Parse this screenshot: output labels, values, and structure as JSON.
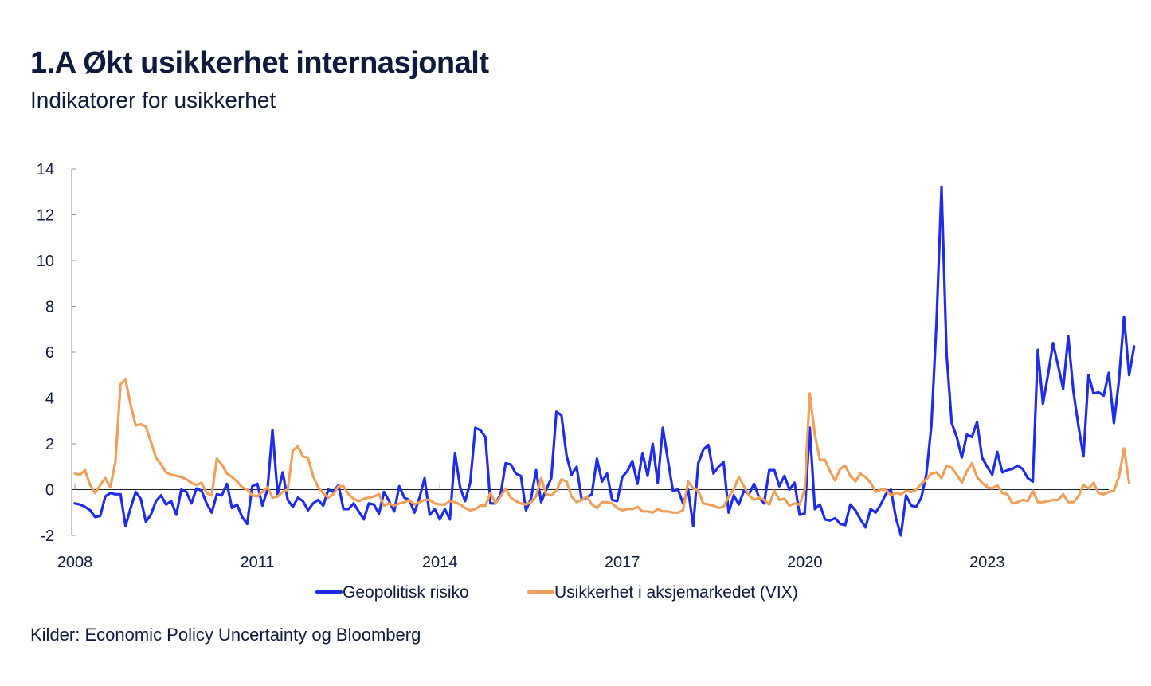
{
  "header": {
    "title": "1.A Økt usikkerhet internasjonalt",
    "subtitle": "Indikatorer for usikkerhet"
  },
  "footer": {
    "source": "Kilder: Economic Policy Uncertainty og Bloomberg"
  },
  "chart_data": {
    "type": "line",
    "title": "1.A Økt usikkerhet internasjonalt",
    "subtitle": "Indikatorer for usikkerhet",
    "xlabel": "",
    "ylabel": "",
    "xlim": [
      2008.0,
      2025.0
    ],
    "ylim": [
      -2,
      14
    ],
    "yticks": [
      -2,
      0,
      2,
      4,
      6,
      8,
      10,
      12,
      14
    ],
    "xticks": [
      2008,
      2011,
      2014,
      2017,
      2020,
      2023
    ],
    "xtick_labels": [
      "2008",
      "2011",
      "2014",
      "2017",
      "2020",
      "2023"
    ],
    "grid": false,
    "zero_line": true,
    "legend": "bottom",
    "series": [
      {
        "name": "Geopolitisk risiko",
        "color": "#1f2ee6",
        "start": 2008.0,
        "step_months": 1,
        "values": [
          -0.6,
          -0.65,
          -0.75,
          -0.9,
          -1.2,
          -1.15,
          -0.3,
          -0.15,
          -0.2,
          -0.2,
          -1.6,
          -0.8,
          -0.1,
          -0.4,
          -1.4,
          -1.1,
          -0.5,
          -0.25,
          -0.65,
          -0.5,
          -1.1,
          0.0,
          -0.1,
          -0.6,
          0.05,
          -0.05,
          -0.6,
          -1.0,
          -0.2,
          -0.25,
          0.25,
          -0.8,
          -0.65,
          -1.2,
          -1.5,
          0.15,
          0.25,
          -0.7,
          0.0,
          2.6,
          -0.2,
          0.75,
          -0.45,
          -0.75,
          -0.35,
          -0.5,
          -0.9,
          -0.6,
          -0.45,
          -0.7,
          0.0,
          -0.1,
          0.2,
          -0.85,
          -0.85,
          -0.6,
          -0.95,
          -1.3,
          -0.6,
          -0.65,
          -1.05,
          -0.1,
          -0.5,
          -0.95,
          0.15,
          -0.35,
          -0.45,
          -1.0,
          -0.35,
          0.5,
          -1.1,
          -0.85,
          -1.3,
          -0.85,
          -1.3,
          1.6,
          0.1,
          -0.5,
          0.3,
          2.7,
          2.6,
          2.3,
          -0.6,
          -0.6,
          -0.2,
          1.15,
          1.1,
          0.7,
          0.6,
          -0.9,
          -0.4,
          0.85,
          -0.55,
          0.0,
          0.5,
          3.4,
          3.25,
          1.5,
          0.65,
          1.0,
          -0.45,
          -0.35,
          -0.2,
          1.35,
          0.35,
          0.7,
          -0.45,
          -0.5,
          0.55,
          0.8,
          1.25,
          0.25,
          1.6,
          0.6,
          2.0,
          0.3,
          2.7,
          1.3,
          -0.05,
          0.0,
          -0.6,
          0.0,
          -1.6,
          1.15,
          1.75,
          1.95,
          0.7,
          1.0,
          1.2,
          -1.0,
          -0.25,
          -0.65,
          -0.05,
          -0.2,
          0.25,
          -0.35,
          -0.6,
          0.85,
          0.85,
          0.15,
          0.6,
          0.0,
          0.3,
          -1.1,
          -1.05,
          2.7,
          -0.85,
          -0.65,
          -1.3,
          -1.35,
          -1.25,
          -1.5,
          -1.55,
          -0.65,
          -0.9,
          -1.3,
          -1.65,
          -0.85,
          -1.0,
          -0.65,
          -0.2,
          0.0,
          -1.25,
          -2.0,
          -0.25,
          -0.7,
          -0.75,
          -0.35,
          0.65,
          2.8,
          7.3,
          13.2,
          5.9,
          2.9,
          2.3,
          1.4,
          2.4,
          2.3,
          2.95,
          1.4,
          1.0,
          0.65,
          1.65,
          0.75,
          0.85,
          0.9,
          1.05,
          0.9,
          0.5,
          0.35,
          6.1,
          3.75,
          5.0,
          6.4,
          5.4,
          4.4,
          6.7,
          4.3,
          2.8,
          1.45,
          5.0,
          4.2,
          4.25,
          4.1,
          5.1,
          2.9,
          4.75,
          7.55,
          5.0,
          6.25
        ]
      },
      {
        "name": "Usikkerhet i aksjemarkedet (VIX)",
        "color": "#f0a05a",
        "start": 2008.0,
        "step_months": 1,
        "values": [
          0.7,
          0.65,
          0.85,
          0.2,
          -0.15,
          0.2,
          0.5,
          0.1,
          1.2,
          4.6,
          4.8,
          3.7,
          2.8,
          2.85,
          2.75,
          2.1,
          1.4,
          1.1,
          0.75,
          0.65,
          0.6,
          0.55,
          0.45,
          0.3,
          0.2,
          0.3,
          -0.15,
          -0.25,
          1.35,
          1.1,
          0.7,
          0.55,
          0.35,
          0.1,
          0.0,
          -0.25,
          -0.3,
          -0.1,
          0.1,
          -0.35,
          -0.3,
          -0.1,
          0.0,
          1.7,
          1.9,
          1.45,
          1.4,
          0.6,
          0.1,
          -0.15,
          -0.35,
          -0.2,
          0.15,
          0.15,
          -0.2,
          -0.4,
          -0.5,
          -0.4,
          -0.35,
          -0.3,
          -0.2,
          -0.7,
          -0.6,
          -0.7,
          -0.6,
          -0.55,
          -0.45,
          -0.65,
          -0.55,
          -0.45,
          -0.45,
          -0.6,
          -0.65,
          -0.65,
          -0.5,
          -0.55,
          -0.65,
          -0.8,
          -0.9,
          -0.85,
          -0.7,
          -0.7,
          -0.15,
          -0.6,
          -0.3,
          0.05,
          -0.35,
          -0.5,
          -0.6,
          -0.65,
          -0.55,
          -0.3,
          0.5,
          -0.2,
          -0.25,
          -0.05,
          0.45,
          0.35,
          -0.3,
          -0.55,
          -0.45,
          -0.3,
          -0.65,
          -0.8,
          -0.55,
          -0.55,
          -0.6,
          -0.8,
          -0.9,
          -0.85,
          -0.85,
          -0.75,
          -0.95,
          -0.95,
          -1.0,
          -0.85,
          -0.95,
          -0.95,
          -1.0,
          -1.0,
          -0.9,
          0.35,
          0.05,
          -0.05,
          -0.6,
          -0.65,
          -0.7,
          -0.8,
          -0.75,
          -0.3,
          0.0,
          0.55,
          0.15,
          -0.25,
          -0.45,
          -0.35,
          -0.45,
          -0.65,
          -0.05,
          -0.45,
          -0.4,
          -0.7,
          -0.6,
          -0.65,
          0.0,
          4.2,
          2.4,
          1.3,
          1.3,
          0.8,
          0.4,
          0.9,
          1.05,
          0.6,
          0.35,
          0.7,
          0.55,
          0.3,
          -0.1,
          0.0,
          0.0,
          -0.25,
          -0.15,
          -0.2,
          -0.05,
          -0.1,
          0.0,
          0.25,
          0.45,
          0.7,
          0.75,
          0.5,
          1.05,
          0.95,
          0.65,
          0.3,
          0.8,
          1.15,
          0.55,
          0.3,
          0.1,
          0.05,
          0.2,
          -0.15,
          -0.2,
          -0.6,
          -0.55,
          -0.45,
          -0.5,
          -0.05,
          -0.55,
          -0.55,
          -0.5,
          -0.45,
          -0.45,
          -0.2,
          -0.55,
          -0.55,
          -0.3,
          0.2,
          0.05,
          0.3,
          -0.15,
          -0.2,
          -0.1,
          -0.05,
          0.55,
          1.8,
          0.3
        ]
      }
    ]
  }
}
